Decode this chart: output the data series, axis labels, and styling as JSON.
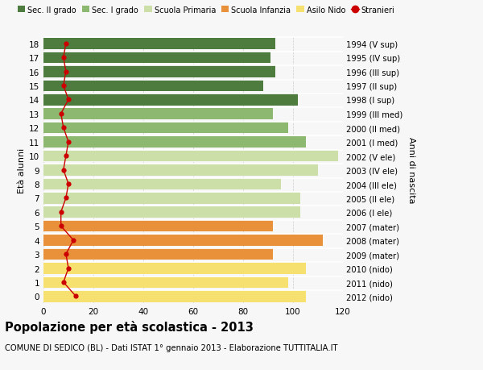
{
  "ages": [
    0,
    1,
    2,
    3,
    4,
    5,
    6,
    7,
    8,
    9,
    10,
    11,
    12,
    13,
    14,
    15,
    16,
    17,
    18
  ],
  "bar_values": [
    105,
    98,
    105,
    92,
    112,
    92,
    103,
    103,
    95,
    110,
    118,
    105,
    98,
    92,
    102,
    88,
    93,
    91,
    93
  ],
  "bar_colors": [
    "#f5e070",
    "#f5e070",
    "#f5e070",
    "#e8913a",
    "#e8913a",
    "#e8913a",
    "#cddfa8",
    "#cddfa8",
    "#cddfa8",
    "#cddfa8",
    "#cddfa8",
    "#8db870",
    "#8db870",
    "#8db870",
    "#4e7c3f",
    "#4e7c3f",
    "#4e7c3f",
    "#4e7c3f",
    "#4e7c3f"
  ],
  "stranieri_values": [
    13,
    8,
    10,
    9,
    12,
    7,
    7,
    9,
    10,
    8,
    9,
    10,
    8,
    7,
    10,
    8,
    9,
    8,
    9
  ],
  "right_labels": [
    "2012 (nido)",
    "2011 (nido)",
    "2010 (nido)",
    "2009 (mater)",
    "2008 (mater)",
    "2007 (mater)",
    "2006 (I ele)",
    "2005 (II ele)",
    "2004 (III ele)",
    "2003 (IV ele)",
    "2002 (V ele)",
    "2001 (I med)",
    "2000 (II med)",
    "1999 (III med)",
    "1998 (I sup)",
    "1997 (II sup)",
    "1996 (III sup)",
    "1995 (IV sup)",
    "1994 (V sup)"
  ],
  "legend_labels": [
    "Sec. II grado",
    "Sec. I grado",
    "Scuola Primaria",
    "Scuola Infanzia",
    "Asilo Nido",
    "Stranieri"
  ],
  "legend_colors": [
    "#4e7c3f",
    "#8db870",
    "#cddfa8",
    "#e8913a",
    "#f5e070",
    "#cc0000"
  ],
  "title": "Popolazione per età scolastica - 2013",
  "subtitle": "COMUNE DI SEDICO (BL) - Dati ISTAT 1° gennaio 2013 - Elaborazione TUTTITALIA.IT",
  "ylabel": "Età alunni",
  "ylabel_right": "Anni di nascita",
  "xlim": [
    0,
    120
  ],
  "xticks": [
    0,
    20,
    40,
    60,
    80,
    100,
    120
  ],
  "bg_color": "#f7f7f7",
  "grid_color": "#cccccc"
}
